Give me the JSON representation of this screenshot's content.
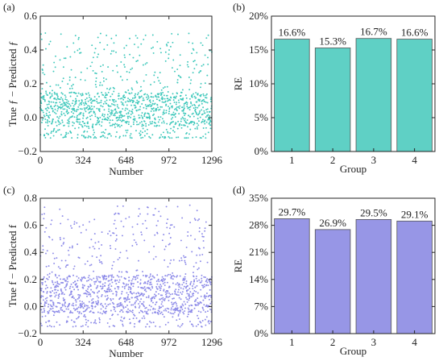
{
  "figure": {
    "panels": [
      {
        "id": "a",
        "label": "(a)",
        "ylabel": "True ƒ − Predicted ƒ",
        "xlabel": "Number"
      },
      {
        "id": "b",
        "label": "(b)",
        "ylabel": "RE",
        "xlabel": "Group"
      },
      {
        "id": "c",
        "label": "(c)",
        "ylabel": "True f − Predicted f",
        "xlabel": "Number"
      },
      {
        "id": "d",
        "label": "(d)",
        "ylabel": "RE",
        "xlabel": "Group"
      }
    ]
  },
  "colors": {
    "teal": "#3ec8bb",
    "teal_bar": "#5fd0c5",
    "purple": "#8c8ae8",
    "purple_bar": "#9796e6",
    "axis": "#222222"
  },
  "chart_data": [
    {
      "type": "scatter",
      "panel": "a",
      "n_points": 1296,
      "xlim": [
        0,
        1296
      ],
      "ylim": [
        -0.2,
        0.6
      ],
      "xticks": [
        0,
        324,
        648,
        972,
        1296
      ],
      "yticks": [
        -0.2,
        0.0,
        0.2,
        0.4,
        0.6
      ],
      "ytick_labels": [
        "−0.2",
        "0.0",
        "0.2",
        "0.4",
        "0.6"
      ],
      "y_distribution": {
        "dense_range": [
          -0.05,
          0.2
        ],
        "max": 0.5,
        "min": -0.12
      },
      "color": "#3ec8bb"
    },
    {
      "type": "bar",
      "panel": "b",
      "categories": [
        "1",
        "2",
        "3",
        "4"
      ],
      "values": [
        16.6,
        15.3,
        16.7,
        16.6
      ],
      "data_labels": [
        "16.6%",
        "15.3%",
        "16.7%",
        "16.6%"
      ],
      "ylim": [
        0,
        20
      ],
      "yticks": [
        0,
        5,
        10,
        15,
        20
      ],
      "ytick_labels": [
        "0%",
        "5%",
        "10%",
        "15%",
        "20%"
      ],
      "color": "#5fd0c5"
    },
    {
      "type": "scatter",
      "panel": "c",
      "n_points": 1296,
      "xlim": [
        0,
        1296
      ],
      "ylim": [
        -0.2,
        0.8
      ],
      "xticks": [
        0,
        324,
        648,
        972,
        1296
      ],
      "yticks": [
        -0.2,
        0.0,
        0.2,
        0.4,
        0.6,
        0.8
      ],
      "ytick_labels": [
        "−0.2",
        "0.0",
        "0.2",
        "0.4",
        "0.6",
        "0.8"
      ],
      "y_distribution": {
        "dense_range": [
          -0.05,
          0.3
        ],
        "max": 0.75,
        "min": -0.15
      },
      "color": "#8c8ae8"
    },
    {
      "type": "bar",
      "panel": "d",
      "categories": [
        "1",
        "2",
        "3",
        "4"
      ],
      "values": [
        29.7,
        26.9,
        29.5,
        29.1
      ],
      "data_labels": [
        "29.7%",
        "26.9%",
        "29.5%",
        "29.1%"
      ],
      "ylim": [
        0,
        35
      ],
      "yticks": [
        0,
        7,
        14,
        21,
        28,
        35
      ],
      "ytick_labels": [
        "0%",
        "7%",
        "14%",
        "21%",
        "28%",
        "35%"
      ],
      "color": "#9796e6"
    }
  ]
}
